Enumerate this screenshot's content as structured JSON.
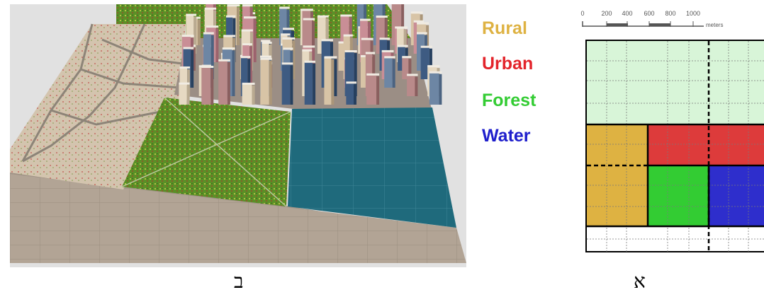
{
  "legend": {
    "items": [
      {
        "label": "Rural",
        "color": "#deb242"
      },
      {
        "label": "Urban",
        "color": "#e3242b"
      },
      {
        "label": "Forest",
        "color": "#33cc33"
      },
      {
        "label": "Water",
        "color": "#1f1fcc"
      }
    ]
  },
  "scale_bar": {
    "ticks": [
      "0",
      "200",
      "400",
      "600",
      "800",
      "1000"
    ],
    "unit": "meters"
  },
  "grid_map": {
    "zones": [
      {
        "type": "Forest",
        "fill": "#d8f5d8"
      },
      {
        "type": "Rural",
        "fill": "#deb242"
      },
      {
        "type": "Urban",
        "fill": "#dd3b3b"
      },
      {
        "type": "Forest",
        "fill": "#33cc33"
      },
      {
        "type": "Water",
        "fill": "#2e2ecc"
      }
    ]
  },
  "captions": {
    "left": "ב",
    "right": "א"
  },
  "colors": {
    "road": "#b1a394",
    "rural_ground": "#d2c3ad",
    "grass": "#5a8e26",
    "water": "#1f6a7c",
    "background": "#e1e1e1"
  }
}
